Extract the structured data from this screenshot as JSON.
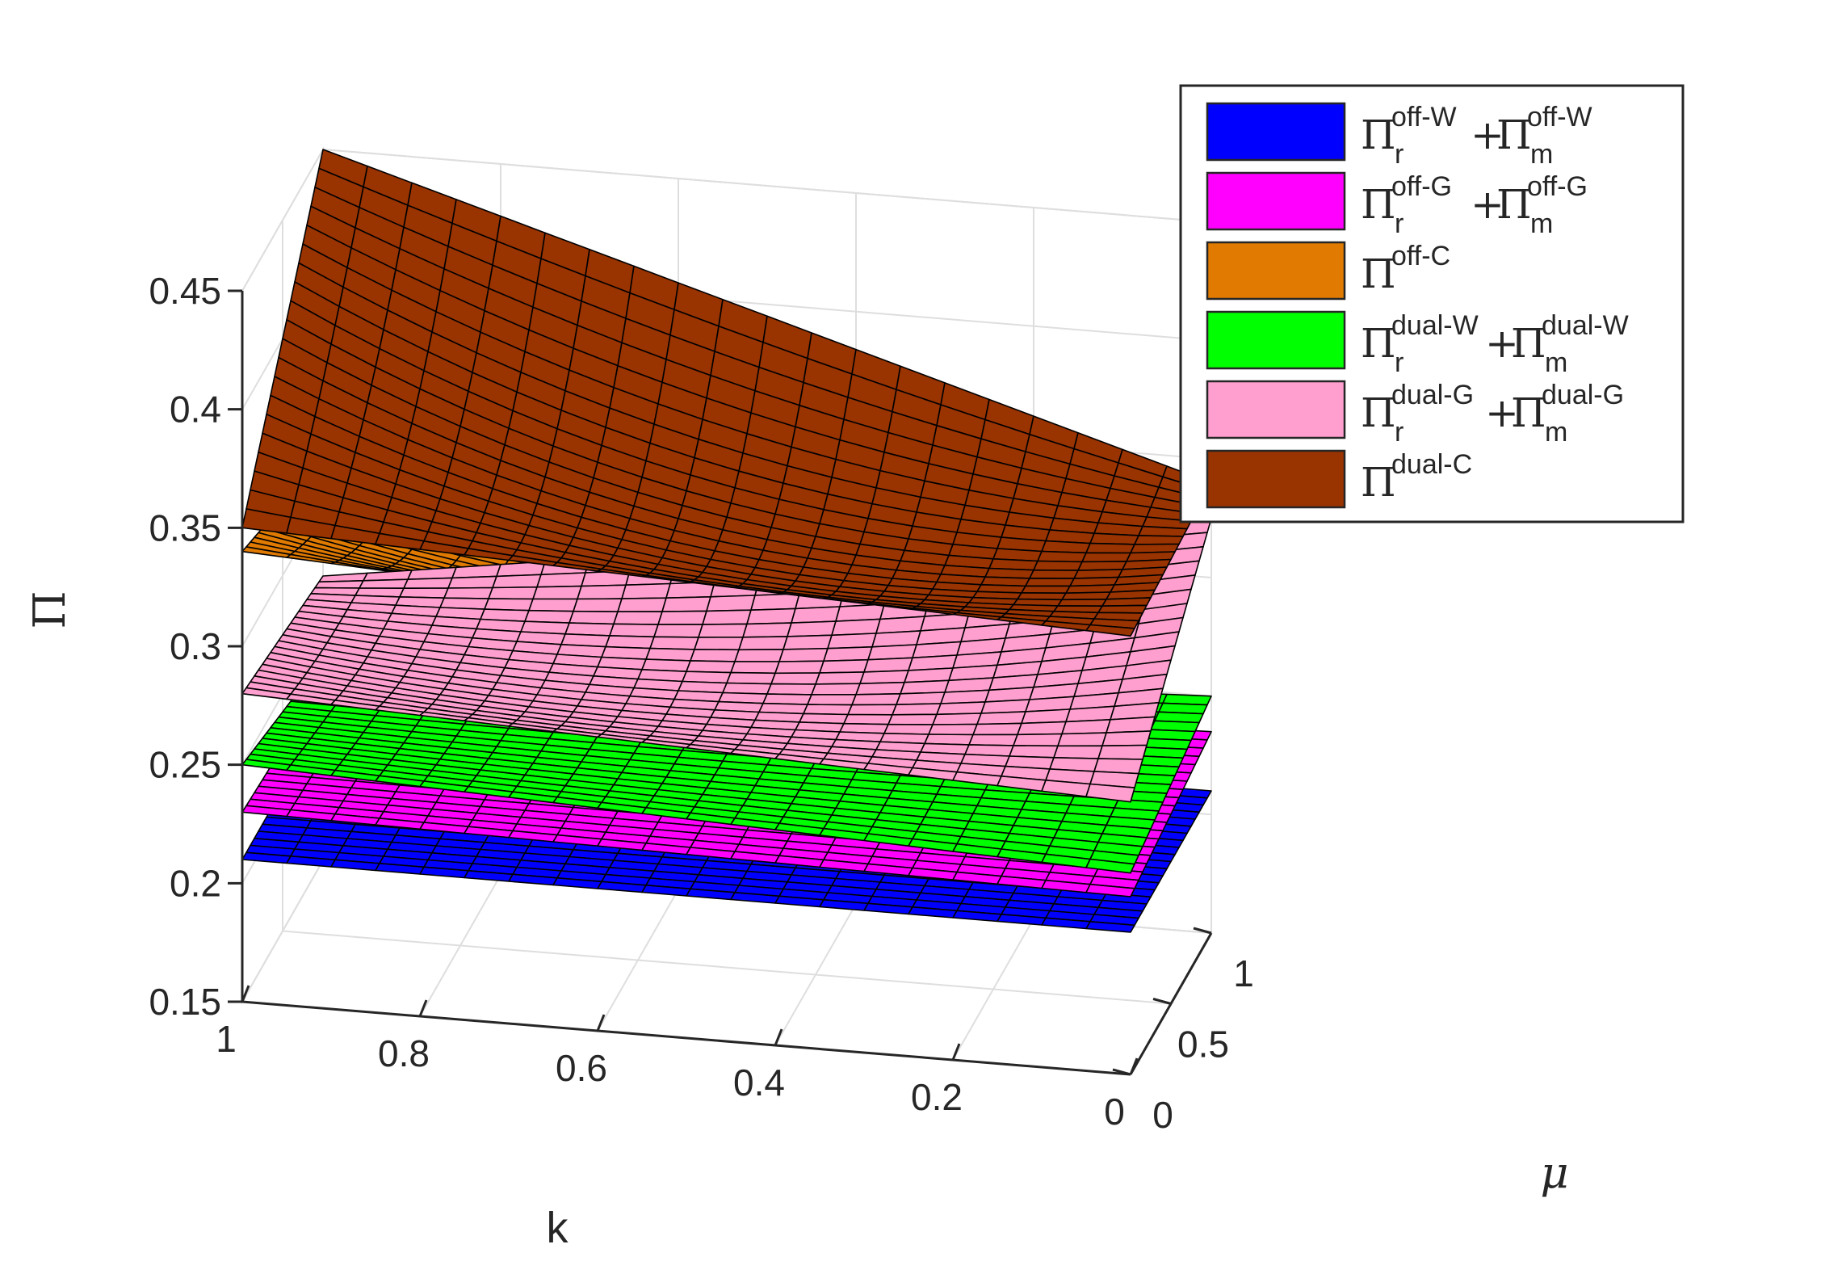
{
  "chart_data": {
    "type": "surface",
    "title": "",
    "xlabel": "k",
    "ylabel": "μ",
    "zlabel": "Π",
    "xlim": [
      0,
      1
    ],
    "ylim": [
      0,
      1
    ],
    "zlim": [
      0.15,
      0.45
    ],
    "x_ticks": [
      "0",
      "0.2",
      "0.4",
      "0.6",
      "0.8",
      "1"
    ],
    "y_ticks": [
      "0",
      "0.5",
      "1"
    ],
    "z_ticks": [
      "0.15",
      "0.2",
      "0.25",
      "0.3",
      "0.35",
      "0.4",
      "0.45"
    ],
    "grid": true,
    "legend_position": "top-right",
    "mesh_count": 21,
    "series": [
      {
        "legend": {
          "symbol": "Π",
          "sub1": "r",
          "sup1": "off-W",
          "plus": "+",
          "symbol2": "Π",
          "sub2": "m",
          "sup2": "off-W"
        },
        "color": "#0000ff",
        "corners": {
          "k1_mu0": 0.21,
          "k0_mu0": 0.21,
          "k1_mu1": 0.21,
          "k0_mu1": 0.21,
          "center": 0.21
        }
      },
      {
        "legend": {
          "symbol": "Π",
          "sub1": "r",
          "sup1": "off-G",
          "plus": "+",
          "symbol2": "Π",
          "sub2": "m",
          "sup2": "off-G"
        },
        "color": "#ff00ff",
        "corners": {
          "k1_mu0": 0.23,
          "k0_mu0": 0.225,
          "k1_mu1": 0.225,
          "k0_mu1": 0.235,
          "center": 0.228
        }
      },
      {
        "legend": {
          "symbol": "Π",
          "sup1": "off-C"
        },
        "color": "#e07a00",
        "corners": {
          "k1_mu0": 0.34,
          "k0_mu0": 0.32,
          "k1_mu1": 0.32,
          "k0_mu1": 0.33,
          "center": 0.305
        }
      },
      {
        "legend": {
          "symbol": "Π",
          "sub1": "r",
          "sup1": "dual-W",
          "plus": "+",
          "symbol2": "Π",
          "sub2": "m",
          "sup2": "dual-W"
        },
        "color": "#00ff00",
        "corners": {
          "k1_mu0": 0.25,
          "k0_mu0": 0.235,
          "k1_mu1": 0.235,
          "k0_mu1": 0.25,
          "center": 0.24
        }
      },
      {
        "legend": {
          "symbol": "Π",
          "sub1": "r",
          "sup1": "dual-G",
          "plus": "+",
          "symbol2": "Π",
          "sub2": "m",
          "sup2": "dual-G"
        },
        "color": "#ff9fcf",
        "corners": {
          "k1_mu0": 0.28,
          "k0_mu0": 0.265,
          "k1_mu1": 0.27,
          "k0_mu1": 0.325,
          "center": 0.27
        }
      },
      {
        "legend": {
          "symbol": "Π",
          "sup1": "dual-C"
        },
        "color": "#993300",
        "corners": {
          "k1_mu0": 0.35,
          "k0_mu0": 0.335,
          "k1_mu1": 0.45,
          "k0_mu1": 0.34,
          "center": 0.34
        }
      }
    ]
  }
}
